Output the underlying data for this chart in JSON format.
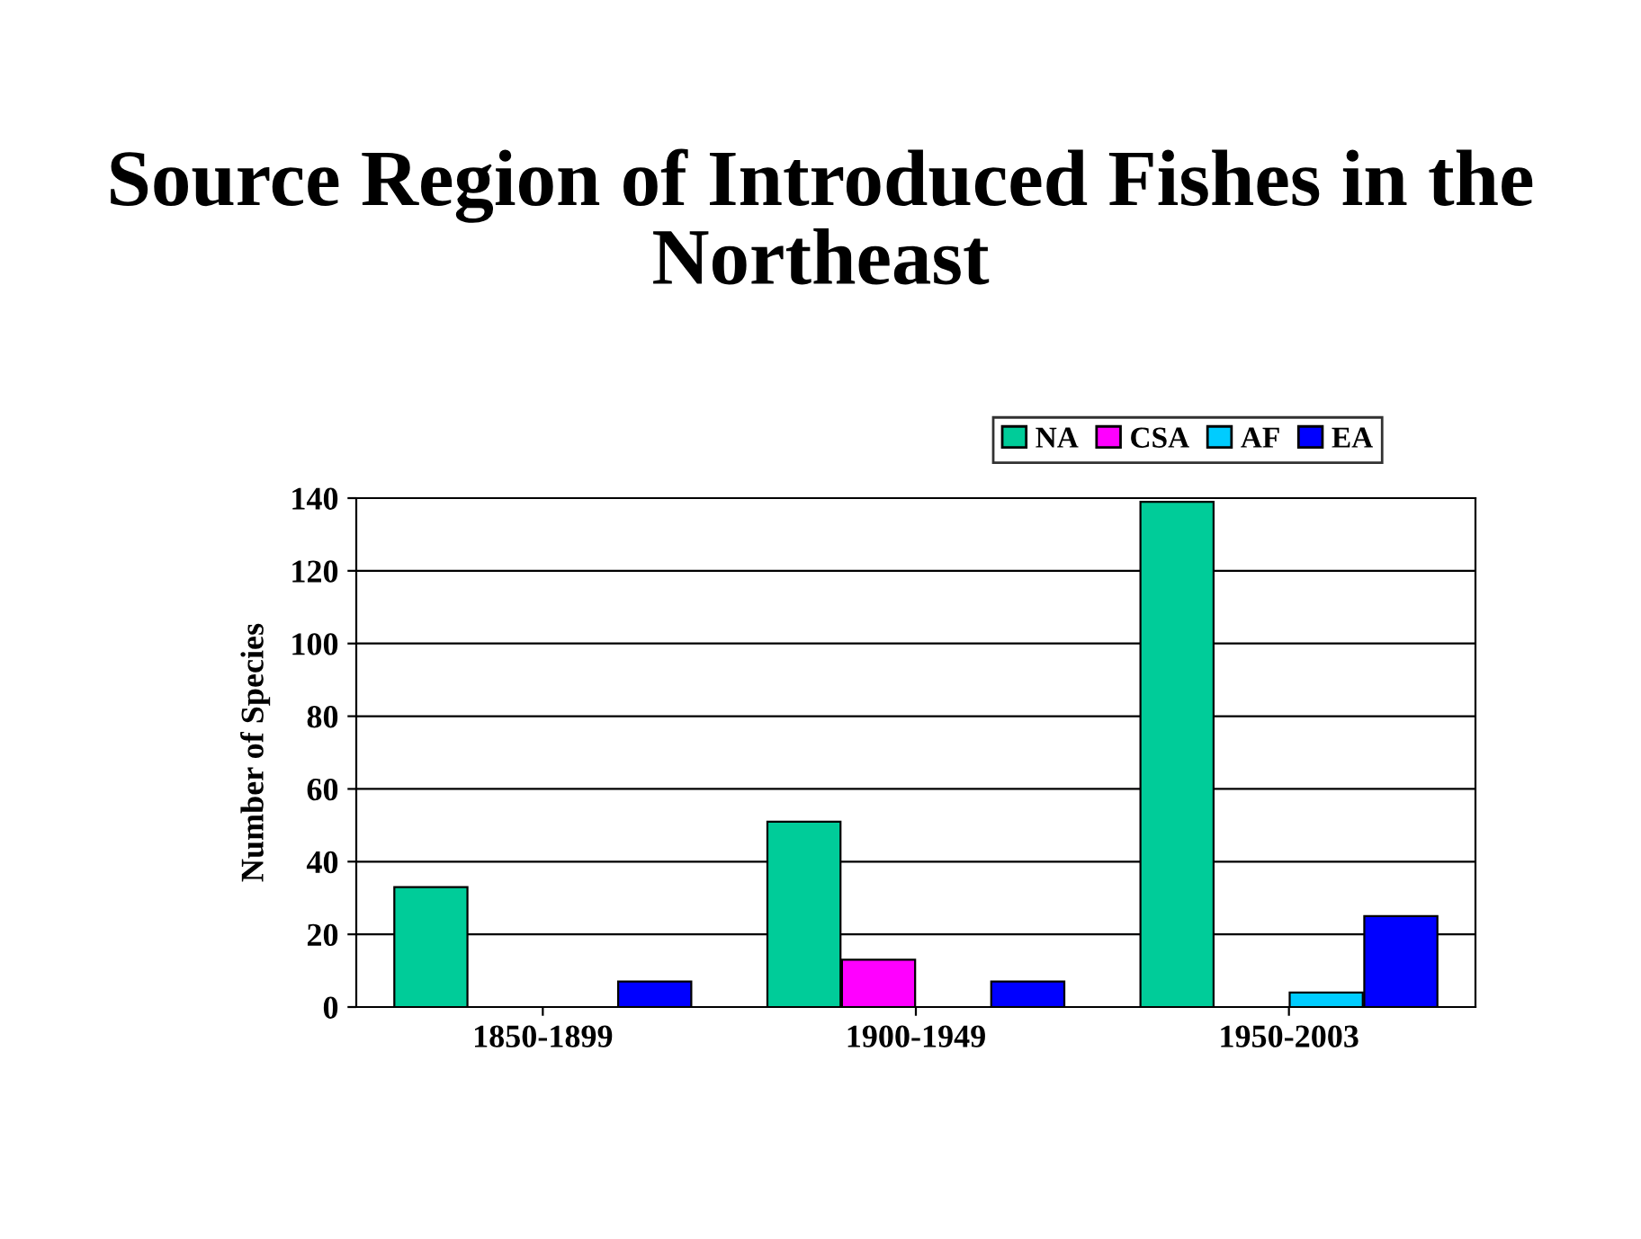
{
  "chart_data": {
    "type": "bar",
    "title": "Source Region of Introduced Fishes in the Northeast",
    "ylabel": "Number of Species",
    "categories": [
      "1850-1899",
      "1900-1949",
      "1950-2003"
    ],
    "series": [
      {
        "name": "NA",
        "color": "#00cc99",
        "values": [
          33,
          51,
          139
        ]
      },
      {
        "name": "CSA",
        "color": "#ff00ff",
        "values": [
          null,
          13,
          null
        ]
      },
      {
        "name": "AF",
        "color": "#00ccff",
        "values": [
          null,
          null,
          4
        ]
      },
      {
        "name": "EA",
        "color": "#0000ff",
        "values": [
          7,
          7,
          25
        ]
      }
    ],
    "ylim": [
      0,
      140
    ],
    "yticks": [
      0,
      20,
      40,
      60,
      80,
      100,
      120,
      140
    ],
    "grid": "y",
    "legend": "top right"
  }
}
